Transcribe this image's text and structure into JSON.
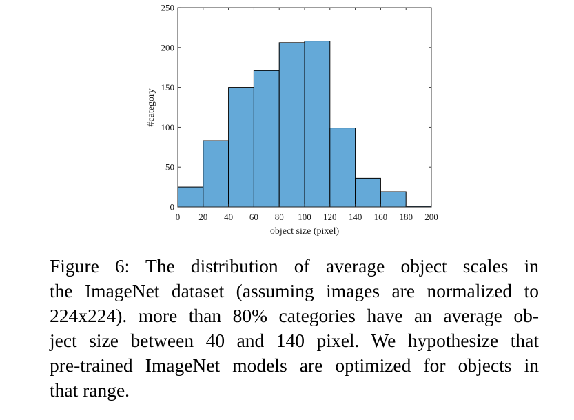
{
  "chart_data": {
    "type": "bar",
    "histogram": true,
    "bin_edges": [
      0,
      20,
      40,
      60,
      80,
      100,
      120,
      140,
      160,
      180,
      200
    ],
    "values": [
      25,
      83,
      150,
      171,
      206,
      208,
      99,
      36,
      19,
      1
    ],
    "xlabel": "object size (pixel)",
    "ylabel": "#category",
    "xlim": [
      0,
      200
    ],
    "ylim": [
      0,
      250
    ],
    "xticks": [
      0,
      20,
      40,
      60,
      80,
      100,
      120,
      140,
      160,
      180,
      200
    ],
    "yticks": [
      0,
      50,
      100,
      150,
      200,
      250
    ],
    "grid": false,
    "bar_color": "#64a9d8",
    "bar_edge_color": "#000000"
  },
  "caption": {
    "lines": [
      "Figure 6:  The distribution of average object scales in",
      "the ImageNet dataset (assuming images are normalized to",
      "224x224).  more than 80% categories have an average ob-",
      "ject size between 40 and 140 pixel.  We hypothesize that",
      "pre-trained ImageNet models are optimized for objects in",
      "that range."
    ]
  }
}
